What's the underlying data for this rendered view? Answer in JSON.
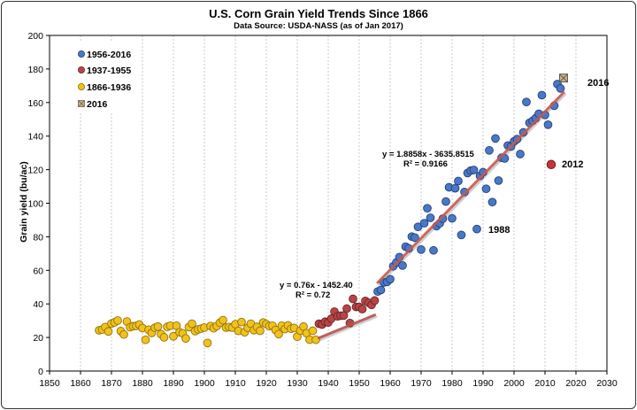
{
  "chart_data": {
    "type": "scatter",
    "title": "U.S. Corn Grain Yield Trends Since 1866",
    "subtitle": "Data Source: USDA-NASS (as of Jan 2017)",
    "xlabel": "",
    "ylabel": "Grain yield (bu/ac)",
    "xlim": [
      1850,
      2030
    ],
    "ylim": [
      0,
      200
    ],
    "xticks": [
      1850,
      1860,
      1870,
      1880,
      1890,
      1900,
      1910,
      1920,
      1930,
      1940,
      1950,
      1960,
      1970,
      1980,
      1990,
      2000,
      2010,
      2020,
      2030
    ],
    "yticks": [
      0,
      20,
      40,
      60,
      80,
      100,
      120,
      140,
      160,
      180,
      200
    ],
    "grid": "vertical dashed",
    "legend_position": "top-left",
    "series": [
      {
        "name": "1956-2016",
        "color": "#4a78c8",
        "x": [
          1956,
          1957,
          1958,
          1959,
          1960,
          1961,
          1962,
          1963,
          1964,
          1965,
          1966,
          1967,
          1968,
          1969,
          1970,
          1971,
          1972,
          1973,
          1974,
          1975,
          1976,
          1977,
          1978,
          1979,
          1980,
          1981,
          1982,
          1983,
          1984,
          1985,
          1986,
          1987,
          1988,
          1989,
          1990,
          1991,
          1992,
          1993,
          1994,
          1995,
          1996,
          1997,
          1998,
          1999,
          2000,
          2001,
          2002,
          2003,
          2004,
          2005,
          2006,
          2007,
          2008,
          2009,
          2010,
          2011,
          2013,
          2014,
          2015,
          2016
        ],
        "y": [
          47.4,
          48.3,
          52.8,
          53.1,
          54.7,
          62.4,
          64.7,
          67.9,
          62.9,
          74.1,
          73.1,
          80.1,
          79.5,
          85.9,
          72.4,
          88.1,
          97.0,
          91.3,
          71.9,
          86.4,
          88.0,
          90.8,
          101.0,
          109.5,
          91.0,
          108.9,
          113.2,
          81.1,
          106.7,
          118.0,
          119.4,
          119.8,
          84.6,
          116.3,
          118.5,
          108.6,
          131.5,
          100.7,
          138.6,
          113.5,
          127.1,
          126.7,
          134.4,
          133.8,
          136.9,
          138.2,
          129.3,
          142.2,
          160.3,
          147.9,
          149.1,
          150.7,
          153.3,
          164.4,
          152.6,
          146.8,
          158.1,
          171.0,
          168.4,
          174.6
        ]
      },
      {
        "name": "1937-1955",
        "color": "#b84448",
        "x": [
          1937,
          1938,
          1939,
          1940,
          1941,
          1942,
          1943,
          1944,
          1945,
          1946,
          1947,
          1948,
          1949,
          1950,
          1951,
          1952,
          1953,
          1954,
          1955
        ],
        "y": [
          28.2,
          27.7,
          29.4,
          28.9,
          31.2,
          35.4,
          32.6,
          33.0,
          33.1,
          37.2,
          28.6,
          43.0,
          38.2,
          38.2,
          36.9,
          41.8,
          40.7,
          39.4,
          42.0
        ]
      },
      {
        "name": "1866-1936",
        "color": "#f2c21a",
        "x": [
          1866,
          1867,
          1868,
          1869,
          1870,
          1871,
          1872,
          1873,
          1874,
          1875,
          1876,
          1877,
          1878,
          1879,
          1880,
          1881,
          1882,
          1883,
          1884,
          1885,
          1886,
          1887,
          1888,
          1889,
          1890,
          1891,
          1892,
          1893,
          1894,
          1895,
          1896,
          1897,
          1898,
          1899,
          1900,
          1901,
          1902,
          1903,
          1904,
          1905,
          1906,
          1907,
          1908,
          1909,
          1910,
          1911,
          1912,
          1913,
          1914,
          1915,
          1916,
          1917,
          1918,
          1919,
          1920,
          1921,
          1922,
          1923,
          1924,
          1925,
          1926,
          1927,
          1928,
          1929,
          1930,
          1931,
          1932,
          1933,
          1934,
          1935,
          1936
        ],
        "y": [
          24.3,
          24.7,
          26.2,
          23.6,
          28.3,
          29.0,
          30.1,
          23.8,
          21.8,
          29.5,
          26.1,
          26.7,
          26.9,
          27.7,
          25.6,
          18.6,
          24.6,
          22.7,
          25.8,
          26.5,
          22.0,
          20.1,
          26.3,
          27.0,
          20.7,
          27.0,
          23.1,
          22.5,
          19.4,
          26.2,
          28.2,
          23.8,
          24.8,
          25.3,
          25.9,
          16.7,
          26.8,
          25.5,
          26.8,
          28.8,
          30.3,
          25.9,
          26.2,
          25.9,
          27.9,
          23.9,
          29.2,
          23.1,
          25.8,
          28.2,
          24.4,
          26.3,
          24.0,
          28.9,
          27.9,
          26.8,
          27.0,
          24.5,
          22.0,
          27.0,
          25.0,
          27.2,
          25.2,
          25.7,
          20.5,
          24.1,
          26.5,
          22.6,
          18.7,
          24.0,
          18.6
        ]
      },
      {
        "name": "2016",
        "color": "#c8b48a",
        "x": [
          2016
        ],
        "y": [
          174.6
        ]
      }
    ],
    "extra_points": [
      {
        "label": "2012",
        "x": 2012,
        "y": 123.1,
        "color": "#c8323c"
      }
    ],
    "trendlines": [
      {
        "equation": "y = 0.76x - 1452.40",
        "r2": "R² = 0.72",
        "x_range": [
          1937,
          1955
        ],
        "slope": 0.76,
        "intercept": -1452.4,
        "color": "#b8504a"
      },
      {
        "equation": "y = 1.8858x - 3635.8515",
        "r2": "R² = 0.9166",
        "x_range": [
          1956,
          2016
        ],
        "slope": 1.8858,
        "intercept": -3635.8515,
        "color": "#c8584e"
      }
    ],
    "annotations": [
      "1988",
      "2012",
      "2016"
    ]
  }
}
